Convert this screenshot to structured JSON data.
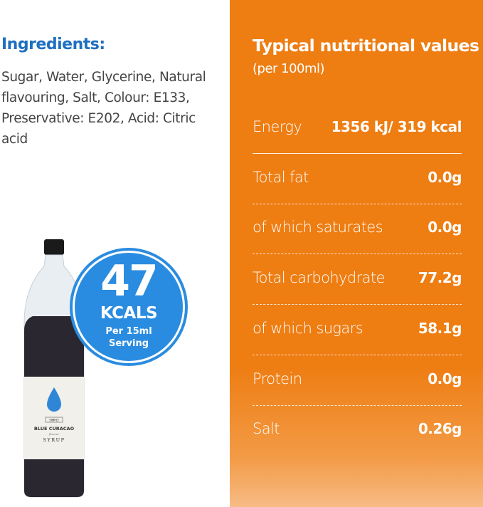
{
  "ingredients": {
    "title": "Ingredients:",
    "text": "Sugar, Water, Glycerine, Natural flavouring, Salt, Colour: E133, Preservative: E202, Acid: Citric acid"
  },
  "nutrition": {
    "title": "Typical nutritional values",
    "subtitle": "(per 100ml)",
    "rows": [
      {
        "label": "Energy",
        "value": "1356 kJ/ 319 kcal"
      },
      {
        "label": "Total fat",
        "value": "0.0g"
      },
      {
        "label": "of which saturates",
        "value": "0.0g"
      },
      {
        "label": "Total carbohydrate",
        "value": "77.2g"
      },
      {
        "label": "of which sugars",
        "value": "58.1g"
      },
      {
        "label": "Protein",
        "value": "0.0g"
      },
      {
        "label": "Salt",
        "value": "0.26g"
      }
    ]
  },
  "badge": {
    "number": "47",
    "unit": "KCALS",
    "line1": "Per 15ml",
    "line2": "Serving"
  },
  "bottle_label": {
    "brand": "SIMPLY",
    "flavour": "BLUE CURACAO",
    "sub": "flavour",
    "product": "SYRUP"
  },
  "colors": {
    "accent_blue": "#1f6fc1",
    "badge_blue": "#2a8ce0",
    "panel_orange": "#ee7d12"
  }
}
